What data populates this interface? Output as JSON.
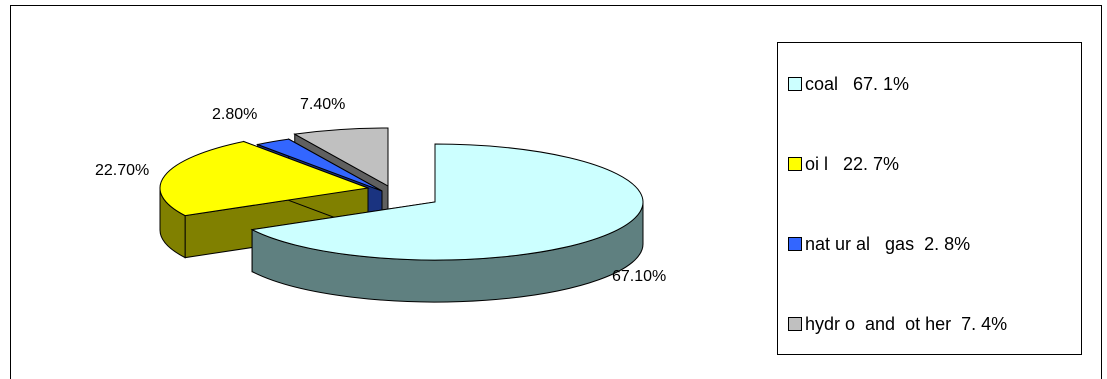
{
  "chart_data": {
    "type": "pie",
    "style": "3d-exploded",
    "slices": [
      {
        "name": "coal",
        "value": 67.1,
        "label": "67.10%",
        "legend": "coal   67. 1%",
        "color": "#ccffff",
        "side_color": "#5f8080"
      },
      {
        "name": "oil",
        "value": 22.7,
        "label": "22.70%",
        "legend": "oi l   22. 7%",
        "color": "#ffff00",
        "side_color": "#808000"
      },
      {
        "name": "natural gas",
        "value": 2.8,
        "label": "2.80%",
        "legend": "nat ur al   gas  2. 8%",
        "color": "#3366ff",
        "side_color": "#1a3380"
      },
      {
        "name": "hydro and other",
        "value": 7.4,
        "label": "7.40%",
        "legend": "hydr o  and  ot her  7. 4%",
        "color": "#c0c0c0",
        "side_color": "#606060"
      }
    ],
    "legend_position": "right"
  }
}
